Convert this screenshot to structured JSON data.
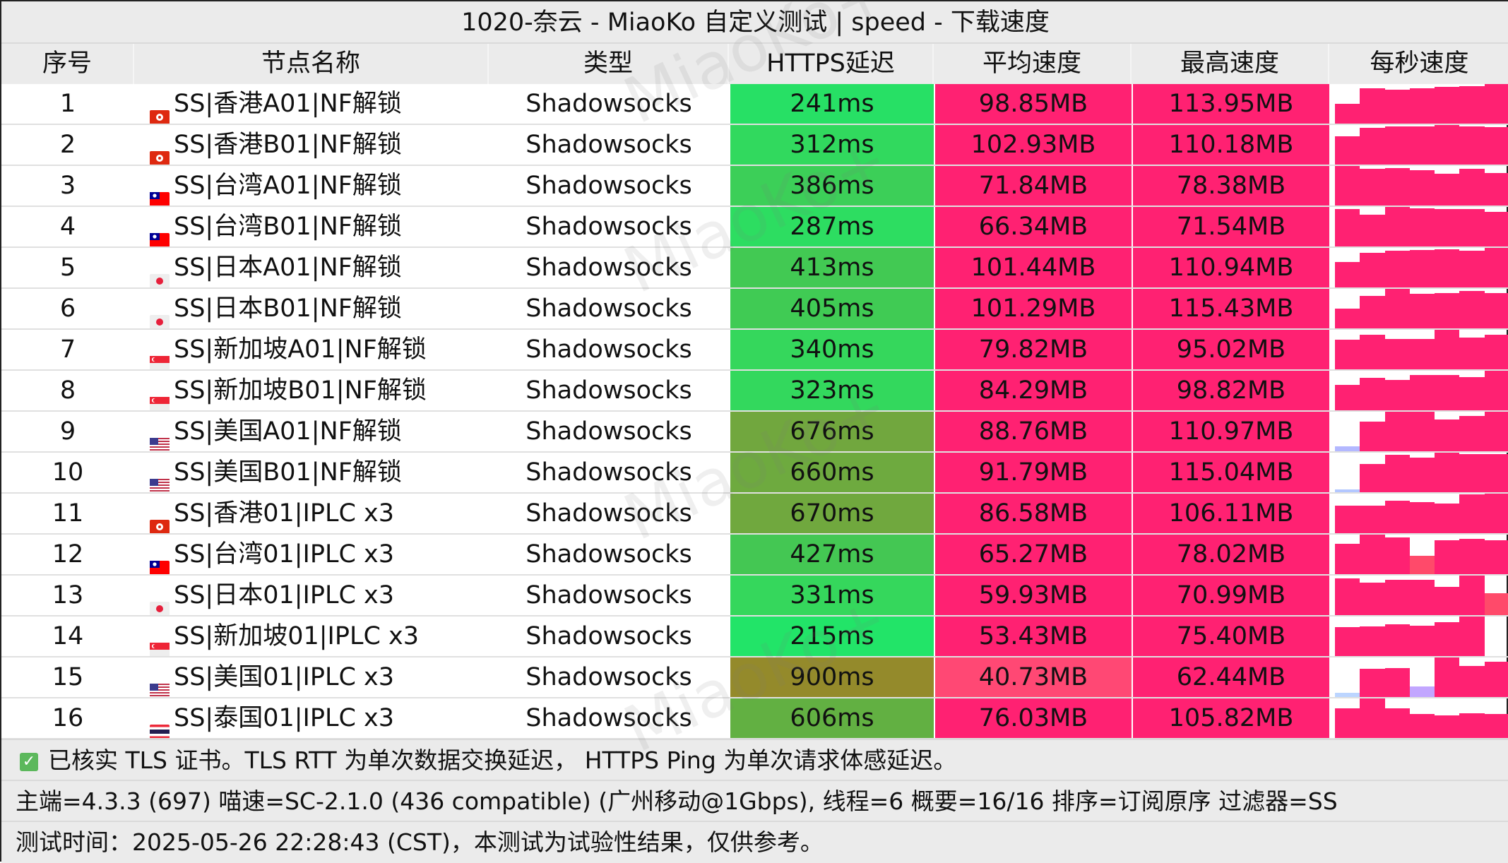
{
  "title": "1020-奈云 - MiaoKo 自定义测试 | speed - 下载速度",
  "columns": [
    "序号",
    "节点名称",
    "类型",
    "HTTPS延迟",
    "平均速度",
    "最高速度",
    "每秒速度"
  ],
  "rows": [
    {
      "idx": "1",
      "flag": "hk",
      "name": "SS|香港A01|NF解锁",
      "type": "Shadowsocks",
      "latency": "241ms",
      "lat_color": "#27e065",
      "avg": "98.85MB",
      "avg_color": "#ff2172",
      "max": "113.95MB",
      "per_sec": [
        0.5,
        0.9,
        0.85,
        0.9,
        0.92,
        0.95,
        1.0
      ]
    },
    {
      "idx": "2",
      "flag": "hk",
      "name": "SS|香港B01|NF解锁",
      "type": "Shadowsocks",
      "latency": "312ms",
      "lat_color": "#31d95e",
      "avg": "102.93MB",
      "avg_color": "#ff2172",
      "max": "110.18MB",
      "per_sec": [
        0.72,
        0.92,
        0.97,
        0.97,
        1.0,
        0.97,
        0.95
      ]
    },
    {
      "idx": "3",
      "flag": "tw",
      "name": "SS|台湾A01|NF解锁",
      "type": "Shadowsocks",
      "latency": "386ms",
      "lat_color": "#3ccf58",
      "avg": "71.84MB",
      "avg_color": "#ff2172",
      "max": "78.38MB",
      "per_sec": [
        1.0,
        0.93,
        0.95,
        0.9,
        0.8,
        0.92,
        0.82
      ]
    },
    {
      "idx": "4",
      "flag": "tw",
      "name": "SS|台湾B01|NF解锁",
      "type": "Shadowsocks",
      "latency": "287ms",
      "lat_color": "#2ddd61",
      "avg": "66.34MB",
      "avg_color": "#ff2172",
      "max": "71.54MB",
      "per_sec": [
        0.94,
        0.8,
        1.0,
        0.96,
        0.95,
        0.94,
        0.88
      ]
    },
    {
      "idx": "5",
      "flag": "jp",
      "name": "SS|日本A01|NF解锁",
      "type": "Shadowsocks",
      "latency": "413ms",
      "lat_color": "#42c953",
      "avg": "101.44MB",
      "avg_color": "#ff2172",
      "max": "110.94MB",
      "per_sec": [
        0.65,
        0.87,
        0.93,
        0.95,
        0.97,
        0.92,
        1.0
      ]
    },
    {
      "idx": "6",
      "flag": "jp",
      "name": "SS|日本B01|NF解锁",
      "type": "Shadowsocks",
      "latency": "405ms",
      "lat_color": "#40cb54",
      "avg": "101.29MB",
      "avg_color": "#ff2172",
      "max": "115.43MB",
      "per_sec": [
        0.5,
        0.83,
        1.0,
        0.88,
        0.9,
        0.95,
        0.9
      ]
    },
    {
      "idx": "7",
      "flag": "sg",
      "name": "SS|新加坡A01|NF解锁",
      "type": "Shadowsocks",
      "latency": "340ms",
      "lat_color": "#35d75c",
      "avg": "79.82MB",
      "avg_color": "#ff2172",
      "max": "95.02MB",
      "per_sec": [
        0.75,
        0.87,
        0.77,
        0.77,
        1.0,
        0.8,
        0.87
      ]
    },
    {
      "idx": "8",
      "flag": "sg",
      "name": "SS|新加坡B01|NF解锁",
      "type": "Shadowsocks",
      "latency": "323ms",
      "lat_color": "#33d85d",
      "avg": "84.29MB",
      "avg_color": "#ff2172",
      "max": "98.82MB",
      "per_sec": [
        0.65,
        0.82,
        0.77,
        0.9,
        0.9,
        0.84,
        1.0
      ]
    },
    {
      "idx": "9",
      "flag": "us",
      "name": "SS|美国A01|NF解锁",
      "type": "Shadowsocks",
      "latency": "676ms",
      "lat_color": "#71a73e",
      "avg": "88.76MB",
      "avg_color": "#ff2172",
      "max": "110.97MB",
      "per_sec": [
        0.12,
        0.75,
        1.0,
        1.0,
        0.8,
        0.9,
        1.0
      ],
      "accent": {
        "0": "#b3b8ff"
      }
    },
    {
      "idx": "10",
      "flag": "us",
      "name": "SS|美国B01|NF解锁",
      "type": "Shadowsocks",
      "latency": "660ms",
      "lat_color": "#6eaa3f",
      "avg": "91.79MB",
      "avg_color": "#ff2172",
      "max": "115.04MB",
      "per_sec": [
        0.08,
        0.72,
        0.95,
        0.88,
        1.0,
        0.97,
        0.97
      ],
      "accent": {
        "0": "#b3c7ff"
      }
    },
    {
      "idx": "11",
      "flag": "hk",
      "name": "SS|香港01|IPLC x3",
      "type": "Shadowsocks",
      "latency": "670ms",
      "lat_color": "#70a83e",
      "avg": "86.58MB",
      "avg_color": "#ff2172",
      "max": "106.11MB",
      "per_sec": [
        0.7,
        0.7,
        0.82,
        0.78,
        0.75,
        0.98,
        1.0
      ]
    },
    {
      "idx": "12",
      "flag": "tw",
      "name": "SS|台湾01|IPLC x3",
      "type": "Shadowsocks",
      "latency": "427ms",
      "lat_color": "#44c753",
      "avg": "65.27MB",
      "avg_color": "#ff2172",
      "max": "78.02MB",
      "per_sec": [
        0.77,
        1.0,
        0.93,
        0.47,
        0.85,
        0.9,
        0.85
      ],
      "accent": {
        "3": "#ff4a6a"
      }
    },
    {
      "idx": "13",
      "flag": "jp",
      "name": "SS|日本01|IPLC x3",
      "type": "Shadowsocks",
      "latency": "331ms",
      "lat_color": "#35d75c",
      "avg": "59.93MB",
      "avg_color": "#ff2172",
      "max": "70.99MB",
      "per_sec": [
        0.92,
        0.82,
        0.9,
        0.9,
        0.72,
        1.0,
        0.55
      ],
      "accent": {
        "6": "#ff4a6a"
      }
    },
    {
      "idx": "14",
      "flag": "sg",
      "name": "SS|新加坡01|IPLC x3",
      "type": "Shadowsocks",
      "latency": "215ms",
      "lat_color": "#22e468",
      "avg": "53.43MB",
      "avg_color": "#ff2172",
      "max": "75.40MB",
      "per_sec": [
        0.73,
        0.75,
        0.8,
        0.76,
        0.85,
        1.0,
        0.0
      ]
    },
    {
      "idx": "15",
      "flag": "us",
      "name": "SS|美国01|IPLC x3",
      "type": "Shadowsocks",
      "latency": "900ms",
      "lat_color": "#948a2b",
      "avg": "40.73MB",
      "avg_color": "#ff4874",
      "max": "62.44MB",
      "per_sec": [
        0.1,
        0.72,
        0.74,
        0.27,
        1.0,
        0.79,
        0.9
      ],
      "accent": {
        "0": "#bcd5ff",
        "3": "#c2a6ff"
      }
    },
    {
      "idx": "16",
      "flag": "th",
      "name": "SS|泰国01|IPLC x3",
      "type": "Shadowsocks",
      "latency": "606ms",
      "lat_color": "#62b042",
      "avg": "76.03MB",
      "avg_color": "#ff2172",
      "max": "105.82MB",
      "per_sec": [
        0.75,
        1.0,
        0.75,
        0.6,
        0.58,
        0.62,
        0.6
      ]
    }
  ],
  "footer": {
    "line1": "已核实 TLS 证书。TLS RTT 为单次数据交换延迟， HTTPS Ping 为单次请求体感延迟。",
    "line2": "主端=4.3.3 (697) 喵速=SC-2.1.0 (436 compatible) (广州移动@1Gbps), 线程=6 概要=16/16 排序=订阅原序 过滤器=SS",
    "line3": "测试时间：2025-05-26 22:28:43 (CST)，本测试为试验性结果，仅供参考。"
  },
  "watermark": "MiaoKo+",
  "colors": {
    "speed_bar": "#ff2172",
    "header_bg": "#ebebeb",
    "check": "#5cb85c"
  }
}
